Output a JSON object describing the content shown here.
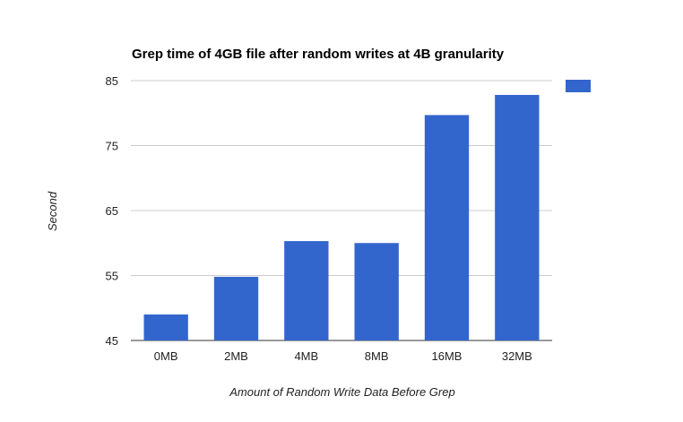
{
  "chart_data": {
    "type": "bar",
    "title": "Grep time of 4GB file after random writes at 4B granularity",
    "xlabel": "Amount of Random Write Data Before Grep",
    "ylabel": "Second",
    "categories": [
      "0MB",
      "2MB",
      "4MB",
      "8MB",
      "16MB",
      "32MB"
    ],
    "series": [
      {
        "name": "",
        "values": [
          49.0,
          54.8,
          60.3,
          60.0,
          79.7,
          82.8
        ]
      }
    ],
    "ylim": [
      45,
      85
    ],
    "yticks": [
      45,
      55,
      65,
      75,
      85
    ],
    "grid": true,
    "legend": "right",
    "colors": {
      "bar": "#3366cc",
      "grid": "#cccccc",
      "baseline": "#333333"
    }
  }
}
